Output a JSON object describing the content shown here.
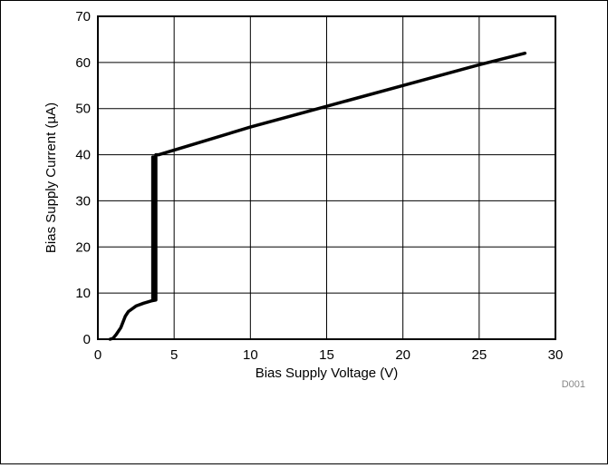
{
  "chart_data": {
    "type": "line",
    "title": "",
    "xlabel": "Bias Supply Voltage  (V)",
    "ylabel": "Bias Supply Current  (µA)",
    "xlim": [
      0,
      30
    ],
    "ylim": [
      0,
      70
    ],
    "xticks": [
      0,
      5,
      10,
      15,
      20,
      25,
      30
    ],
    "yticks": [
      0,
      10,
      20,
      30,
      40,
      50,
      60,
      70
    ],
    "xtick_labels": [
      "0",
      "5",
      "10",
      "15",
      "20",
      "25",
      "30"
    ],
    "ytick_labels": [
      "0",
      "10",
      "20",
      "30",
      "40",
      "50",
      "60",
      "70"
    ],
    "grid": true,
    "legend": "none",
    "line_color": "#000000",
    "series": [
      {
        "x": [
          0.8,
          1.0,
          1.2,
          1.5,
          1.8,
          2.0,
          2.5,
          3.0,
          3.5,
          3.8,
          3.8,
          4.0,
          6.0,
          10.0,
          15.0,
          20.0,
          25.0,
          28.0
        ],
        "values": [
          0,
          0.2,
          1.0,
          2.5,
          5.0,
          6.0,
          7.2,
          7.8,
          8.3,
          8.5,
          40.0,
          40.0,
          42.0,
          46.0,
          50.5,
          55.0,
          59.5,
          62.0
        ]
      },
      {
        "x": [
          3.6,
          3.6,
          3.7,
          3.7
        ],
        "values": [
          8.5,
          39.5,
          39.5,
          8.5
        ]
      }
    ],
    "annotations": [
      "D001"
    ]
  }
}
